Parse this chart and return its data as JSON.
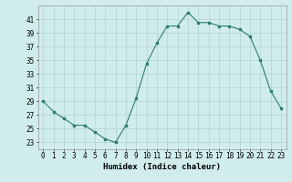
{
  "x": [
    0,
    1,
    2,
    3,
    4,
    5,
    6,
    7,
    8,
    9,
    10,
    11,
    12,
    13,
    14,
    15,
    16,
    17,
    18,
    19,
    20,
    21,
    22,
    23
  ],
  "y": [
    29,
    27.5,
    26.5,
    25.5,
    25.5,
    24.5,
    23.5,
    23,
    25.5,
    29.5,
    34.5,
    37.5,
    40,
    40,
    42,
    40.5,
    40.5,
    40,
    40,
    39.5,
    38.5,
    35,
    30.5,
    28
  ],
  "line_color": "#2e7d6e",
  "marker": "s",
  "marker_size": 2.0,
  "bg_color": "#d0ecec",
  "grid_color": "#b0d4d4",
  "xlabel": "Humidex (Indice chaleur)",
  "ylim": [
    22,
    43
  ],
  "xlim": [
    -0.5,
    23.5
  ],
  "yticks": [
    23,
    25,
    27,
    29,
    31,
    33,
    35,
    37,
    39,
    41
  ],
  "xticks": [
    0,
    1,
    2,
    3,
    4,
    5,
    6,
    7,
    8,
    9,
    10,
    11,
    12,
    13,
    14,
    15,
    16,
    17,
    18,
    19,
    20,
    21,
    22,
    23
  ],
  "label_fontsize": 6.5,
  "tick_fontsize": 5.5
}
